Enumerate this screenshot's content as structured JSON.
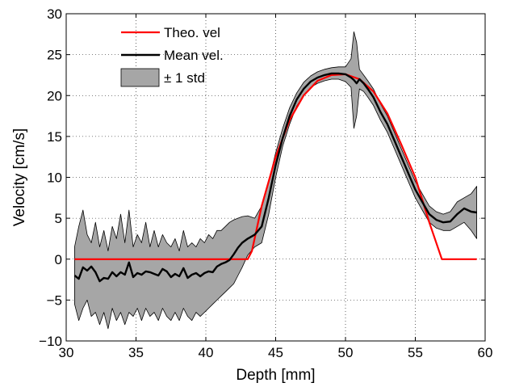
{
  "chart_data": {
    "type": "line",
    "title": "",
    "xlabel": "Depth [mm]",
    "ylabel": "Velocity [cm/s]",
    "xlim": [
      30,
      60
    ],
    "ylim": [
      -10,
      30
    ],
    "xticks": [
      30,
      35,
      40,
      45,
      50,
      55,
      60
    ],
    "yticks": [
      -10,
      -5,
      0,
      5,
      10,
      15,
      20,
      25,
      30
    ],
    "x_tick_labels": [
      "30",
      "35",
      "40",
      "45",
      "50",
      "55",
      "60"
    ],
    "y_tick_labels": [
      "−10",
      "−5",
      "0",
      "5",
      "10",
      "15",
      "20",
      "25",
      "30"
    ],
    "grid": true,
    "legend_position": "top-left",
    "legend": [
      "Theo. vel",
      "Mean vel.",
      "± 1 std"
    ],
    "colors": {
      "theo": "#ff0000",
      "mean": "#000000",
      "band_fill": "#a6a6a6",
      "band_edge": "#000000"
    },
    "series": [
      {
        "name": "Theo. vel",
        "x": [
          30.6,
          43.0,
          43.3,
          44.0,
          45.0,
          46.0,
          47.0,
          48.0,
          49.0,
          50.0,
          51.0,
          52.0,
          53.0,
          54.0,
          55.0,
          56.0,
          56.9,
          59.4
        ],
        "y": [
          0,
          0,
          1.0,
          6.5,
          12.5,
          17.0,
          20.0,
          21.8,
          22.5,
          22.6,
          22.0,
          20.5,
          17.8,
          14.0,
          10.0,
          4.5,
          0,
          0
        ]
      },
      {
        "name": "Mean vel.",
        "x": [
          30.6,
          30.9,
          31.2,
          31.5,
          31.8,
          32.1,
          32.4,
          32.7,
          33.0,
          33.3,
          33.6,
          33.9,
          34.2,
          34.5,
          34.8,
          35.1,
          35.4,
          35.7,
          36.0,
          36.3,
          36.6,
          36.9,
          37.2,
          37.5,
          37.8,
          38.1,
          38.4,
          38.7,
          39.0,
          39.3,
          39.6,
          39.9,
          40.2,
          40.5,
          40.8,
          41.1,
          41.4,
          41.7,
          42.0,
          42.3,
          42.6,
          43.0,
          43.5,
          44.0,
          44.5,
          45.0,
          45.5,
          46.0,
          46.5,
          47.0,
          47.5,
          48.0,
          48.5,
          49.0,
          49.5,
          50.0,
          50.4,
          50.6,
          50.8,
          51.0,
          51.3,
          51.6,
          52.0,
          52.5,
          53.0,
          53.5,
          54.0,
          54.5,
          55.0,
          55.5,
          56.0,
          56.5,
          57.0,
          57.5,
          58.0,
          58.5,
          59.0,
          59.4
        ],
        "y": [
          -2.0,
          -2.4,
          -1.0,
          -1.4,
          -0.9,
          -1.6,
          -2.7,
          -2.3,
          -2.4,
          -1.6,
          -2.1,
          -1.6,
          -1.9,
          -0.4,
          -2.2,
          -1.7,
          -1.9,
          -1.5,
          -1.6,
          -1.8,
          -2.0,
          -1.2,
          -1.5,
          -2.2,
          -1.8,
          -2.1,
          -1.1,
          -2.3,
          -1.9,
          -1.7,
          -2.1,
          -1.7,
          -1.5,
          -1.6,
          -0.9,
          -0.6,
          -0.4,
          -0.1,
          0.6,
          1.4,
          2.0,
          2.5,
          3.0,
          4.0,
          7.5,
          11.5,
          14.8,
          17.5,
          19.5,
          20.8,
          21.7,
          22.2,
          22.5,
          22.7,
          22.7,
          22.6,
          22.2,
          21.9,
          21.5,
          22.0,
          21.5,
          20.8,
          19.8,
          18.0,
          16.5,
          14.5,
          12.5,
          10.5,
          8.5,
          7.0,
          5.5,
          4.8,
          4.5,
          4.6,
          5.5,
          6.2,
          5.8,
          5.7
        ]
      },
      {
        "name": "± 1 std",
        "x": [
          30.6,
          30.9,
          31.2,
          31.5,
          31.8,
          32.1,
          32.4,
          32.7,
          33.0,
          33.3,
          33.6,
          33.9,
          34.2,
          34.5,
          34.8,
          35.1,
          35.4,
          35.7,
          36.0,
          36.3,
          36.6,
          36.9,
          37.2,
          37.5,
          37.8,
          38.1,
          38.4,
          38.7,
          39.0,
          39.3,
          39.6,
          39.9,
          40.2,
          40.5,
          40.8,
          41.1,
          41.4,
          41.7,
          42.0,
          42.3,
          42.6,
          43.0,
          43.5,
          44.0,
          44.5,
          45.0,
          45.5,
          46.0,
          46.5,
          47.0,
          47.5,
          48.0,
          48.5,
          49.0,
          49.5,
          50.0,
          50.4,
          50.6,
          50.8,
          51.0,
          51.3,
          51.6,
          52.0,
          52.5,
          53.0,
          53.5,
          54.0,
          54.5,
          55.0,
          55.5,
          56.0,
          56.5,
          57.0,
          57.5,
          58.0,
          58.5,
          59.0,
          59.4
        ],
        "upper": [
          1.5,
          4.0,
          6.0,
          3.0,
          2.0,
          4.5,
          1.5,
          3.5,
          1.0,
          4.0,
          2.5,
          5.5,
          2.0,
          6.0,
          1.5,
          3.0,
          2.0,
          4.5,
          1.5,
          3.5,
          1.5,
          3.0,
          2.0,
          1.5,
          2.5,
          1.0,
          3.5,
          1.5,
          2.0,
          1.5,
          2.5,
          2.0,
          3.0,
          2.5,
          3.5,
          3.5,
          4.0,
          4.5,
          4.8,
          5.0,
          5.2,
          5.3,
          5.0,
          6.5,
          9.5,
          13.0,
          16.0,
          18.5,
          20.3,
          21.6,
          22.4,
          22.9,
          23.2,
          23.4,
          23.5,
          23.5,
          24.5,
          27.8,
          26.5,
          23.2,
          22.5,
          21.8,
          20.8,
          19.0,
          17.5,
          15.5,
          13.5,
          11.5,
          9.5,
          8.0,
          6.5,
          5.8,
          5.5,
          5.8,
          7.0,
          7.5,
          8.0,
          8.9
        ],
        "lower": [
          -5.5,
          -7.5,
          -6.0,
          -5.0,
          -7.0,
          -6.5,
          -8.0,
          -6.5,
          -8.5,
          -6.0,
          -7.5,
          -6.5,
          -8.0,
          -6.5,
          -7.0,
          -6.0,
          -7.5,
          -6.0,
          -7.0,
          -6.5,
          -7.5,
          -6.0,
          -7.0,
          -7.5,
          -6.5,
          -7.5,
          -6.0,
          -7.0,
          -7.5,
          -6.5,
          -7.0,
          -6.5,
          -6.0,
          -5.5,
          -5.0,
          -4.5,
          -4.0,
          -3.5,
          -3.0,
          -2.0,
          -1.0,
          0.5,
          1.5,
          2.0,
          5.5,
          10.0,
          13.8,
          16.5,
          18.7,
          20.0,
          21.0,
          21.5,
          21.8,
          22.0,
          22.0,
          21.7,
          21.0,
          16.0,
          17.5,
          20.8,
          20.5,
          19.8,
          18.8,
          17.0,
          15.5,
          13.5,
          11.5,
          9.5,
          7.5,
          6.0,
          4.5,
          3.8,
          3.5,
          3.5,
          4.0,
          4.5,
          3.5,
          2.5
        ]
      }
    ]
  }
}
